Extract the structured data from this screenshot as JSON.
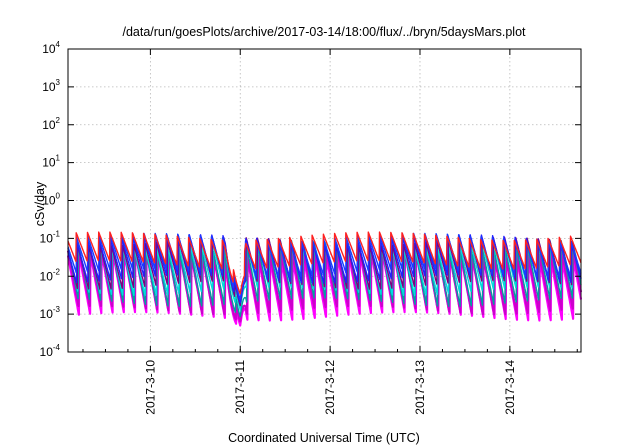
{
  "chart_data": {
    "type": "line",
    "title": "/data/run/goesPlots/archive/2017-03-14/18:00/flux/../bryn/5daysMars.plot",
    "xlabel": "Coordinated Universal Time (UTC)",
    "ylabel": "cSv/day",
    "yscale": "log",
    "ylim": [
      0.0001,
      10000
    ],
    "xlim": [
      "2017-03-09T02:00",
      "2017-03-14T19:00"
    ],
    "x_ticks": [
      "2017-3-10",
      "2017-3-11",
      "2017-3-12",
      "2017-3-13",
      "2017-3-14"
    ],
    "y_ticks": [
      {
        "base": "10",
        "exp": "-4",
        "value": 0.0001
      },
      {
        "base": "10",
        "exp": "-3",
        "value": 0.001
      },
      {
        "base": "10",
        "exp": "-2",
        "value": 0.01
      },
      {
        "base": "10",
        "exp": "-1",
        "value": 0.1
      },
      {
        "base": "10",
        "exp": "0",
        "value": 1
      },
      {
        "base": "10",
        "exp": "1",
        "value": 10
      },
      {
        "base": "10",
        "exp": "2",
        "value": 100
      },
      {
        "base": "10",
        "exp": "3",
        "value": 1000
      },
      {
        "base": "10",
        "exp": "4",
        "value": 10000
      }
    ],
    "grid": true,
    "legend": "none",
    "sawtooth_period_hours": 3,
    "dip": {
      "time": "2017-03-11T00:00",
      "min_value": 0.00025
    },
    "series": [
      {
        "color": "#ff00ff",
        "peak": 0.035,
        "trough": 0.0008
      },
      {
        "color": "#cc00cc",
        "peak": 0.045,
        "trough": 0.0012
      },
      {
        "color": "#00a0a0",
        "peak": 0.06,
        "trough": 0.002
      },
      {
        "color": "#00dddd",
        "peak": 0.075,
        "trough": 0.004
      },
      {
        "color": "#800080",
        "peak": 0.09,
        "trough": 0.006
      },
      {
        "color": "#2020ff",
        "peak": 0.1,
        "trough": 0.008
      },
      {
        "color": "#1a3cff",
        "peak": 0.11,
        "trough": 0.012
      },
      {
        "color": "#ff2020",
        "peak": 0.12,
        "trough": 0.02
      }
    ]
  }
}
